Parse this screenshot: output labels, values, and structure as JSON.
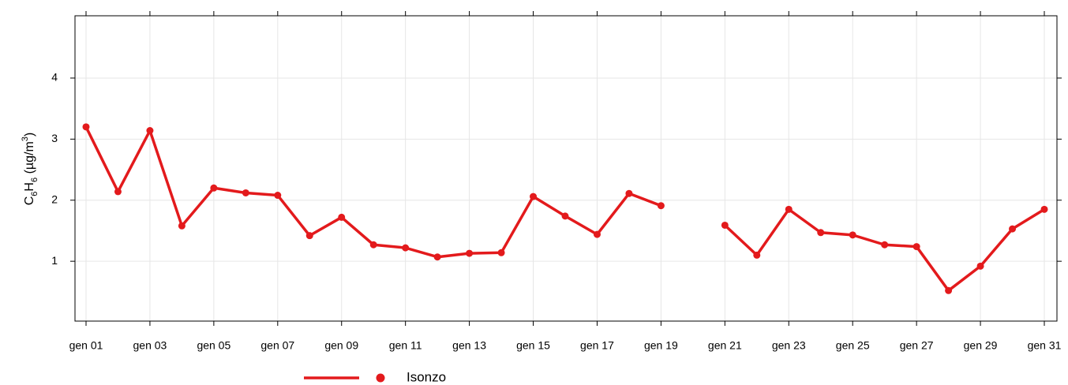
{
  "chart_data": {
    "type": "line",
    "y_label": [
      "C",
      "6",
      "H",
      "6",
      " (µg/m",
      "3",
      ")"
    ],
    "categories": [
      "gen 01",
      null,
      "gen 03",
      null,
      "gen 05",
      null,
      "gen 07",
      null,
      "gen 09",
      null,
      "gen 11",
      null,
      "gen 13",
      null,
      "gen 15",
      null,
      "gen 17",
      null,
      "gen 19",
      null,
      "gen 21",
      null,
      "gen 23",
      null,
      "gen 25",
      null,
      "gen 27",
      null,
      "gen 29",
      null,
      "gen 31"
    ],
    "series": [
      {
        "name": "Isonzo",
        "color": "#e31a1c",
        "values": [
          3.2,
          2.14,
          3.14,
          1.58,
          2.2,
          2.12,
          2.08,
          1.42,
          1.72,
          1.27,
          1.22,
          1.07,
          1.13,
          1.14,
          2.06,
          1.74,
          1.44,
          2.11,
          1.91,
          null,
          1.59,
          1.1,
          1.85,
          1.47,
          1.43,
          1.27,
          1.24,
          0.52,
          0.92,
          1.53,
          1.85
        ]
      }
    ],
    "ylim": [
      0.02,
      5.02
    ],
    "yticks": [
      1,
      2,
      3,
      4
    ],
    "grid": true,
    "legend": "bottom"
  }
}
